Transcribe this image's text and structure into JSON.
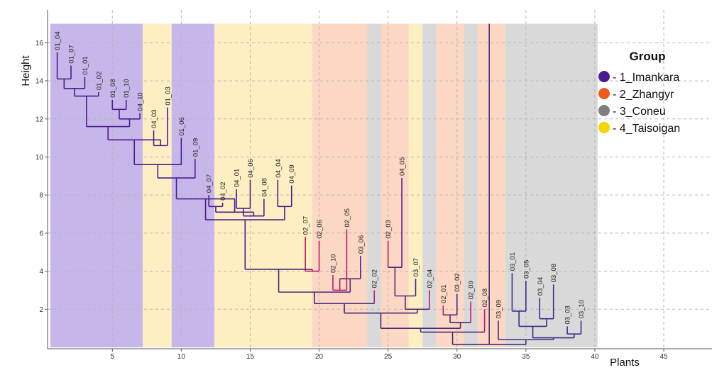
{
  "chart_data": {
    "type": "dendrogram",
    "xlabel": "Plants",
    "ylabel": "Height",
    "xlim": [
      0.3,
      48.5
    ],
    "ylim": [
      0,
      17
    ],
    "x_ticks": [
      5,
      10,
      15,
      20,
      25,
      30,
      35,
      40,
      45
    ],
    "y_ticks": [
      2,
      4,
      6,
      8,
      10,
      12,
      14,
      16
    ],
    "grid": true,
    "legend": {
      "title": "Group",
      "position": "right",
      "entries": [
        {
          "label": "- 1_Imankara",
          "color": "#4b1b8f"
        },
        {
          "label": "- 2_Zhangyr",
          "color": "#f05a1e"
        },
        {
          "label": "- 3_Coneu",
          "color": "#7f7f7f"
        },
        {
          "label": "- 4_Taisoigan",
          "color": "#f5d400"
        }
      ]
    },
    "background_bands": [
      {
        "from": 0.5,
        "to": 7.2,
        "group": "1_Imankara",
        "color": "#c7b6ea"
      },
      {
        "from": 7.2,
        "to": 9.3,
        "group": "4_Taisoigan",
        "color": "#fdefc2"
      },
      {
        "from": 9.3,
        "to": 12.4,
        "group": "1_Imankara",
        "color": "#c7b6ea"
      },
      {
        "from": 12.4,
        "to": 19.5,
        "group": "4_Taisoigan",
        "color": "#fdefc2"
      },
      {
        "from": 19.5,
        "to": 23.5,
        "group": "2_Zhangyr",
        "color": "#fcd7c3"
      },
      {
        "from": 23.5,
        "to": 24.5,
        "group": "3_Coneu",
        "color": "#d9d9d9"
      },
      {
        "from": 24.5,
        "to": 26.5,
        "group": "2_Zhangyr",
        "color": "#fcd7c3"
      },
      {
        "from": 26.5,
        "to": 27.5,
        "group": "4_Taisoigan",
        "color": "#fdefc2"
      },
      {
        "from": 27.5,
        "to": 28.5,
        "group": "3_Coneu",
        "color": "#d9d9d9"
      },
      {
        "from": 28.5,
        "to": 30.5,
        "group": "2_Zhangyr",
        "color": "#fcd7c3"
      },
      {
        "from": 30.5,
        "to": 31.5,
        "group": "3_Coneu",
        "color": "#d9d9d9"
      },
      {
        "from": 31.5,
        "to": 33.5,
        "group": "2_Zhangyr",
        "color": "#fcd7c3"
      },
      {
        "from": 33.5,
        "to": 40.2,
        "group": "3_Coneu",
        "color": "#d9d9d9"
      }
    ],
    "leaves": [
      {
        "label": "01_04",
        "x": 1,
        "y": 15.5
      },
      {
        "label": "01_07",
        "x": 2,
        "y": 14.8
      },
      {
        "label": "01_01",
        "x": 3,
        "y": 14.2
      },
      {
        "label": "01_02",
        "x": 4,
        "y": 13.4
      },
      {
        "label": "01_08",
        "x": 5,
        "y": 13.0
      },
      {
        "label": "01_10",
        "x": 6,
        "y": 13.0
      },
      {
        "label": "04_10",
        "x": 7,
        "y": 12.3
      },
      {
        "label": "04_03",
        "x": 8,
        "y": 11.4
      },
      {
        "label": "01_03",
        "x": 9,
        "y": 12.6
      },
      {
        "label": "01_06",
        "x": 10,
        "y": 11.0
      },
      {
        "label": "01_09",
        "x": 11,
        "y": 9.9
      },
      {
        "label": "04_07",
        "x": 12,
        "y": 8.0
      },
      {
        "label": "04_02",
        "x": 13,
        "y": 7.6
      },
      {
        "label": "04_01",
        "x": 14,
        "y": 8.3
      },
      {
        "label": "04_06",
        "x": 15,
        "y": 8.8
      },
      {
        "label": "04_08",
        "x": 16,
        "y": 7.8
      },
      {
        "label": "04_04",
        "x": 17,
        "y": 8.8
      },
      {
        "label": "04_09",
        "x": 18,
        "y": 8.5
      },
      {
        "label": "02_07",
        "x": 19,
        "y": 5.8
      },
      {
        "label": "02_06",
        "x": 20,
        "y": 5.6
      },
      {
        "label": "02_10",
        "x": 21,
        "y": 3.8
      },
      {
        "label": "02_05",
        "x": 22,
        "y": 6.2
      },
      {
        "label": "03_06",
        "x": 23,
        "y": 4.8
      },
      {
        "label": "02_02",
        "x": 24,
        "y": 3.0
      },
      {
        "label": "02_03",
        "x": 25,
        "y": 5.6
      },
      {
        "label": "04_05",
        "x": 26,
        "y": 8.9
      },
      {
        "label": "03_07",
        "x": 27,
        "y": 3.6
      },
      {
        "label": "02_04",
        "x": 28,
        "y": 3.0
      },
      {
        "label": "02_01",
        "x": 29,
        "y": 2.2
      },
      {
        "label": "03_02",
        "x": 30,
        "y": 2.8
      },
      {
        "label": "02_09",
        "x": 31,
        "y": 2.4
      },
      {
        "label": "02_08",
        "x": 32,
        "y": 2.0
      },
      {
        "label": "03_09",
        "x": 33,
        "y": 1.4
      },
      {
        "label": "03_01",
        "x": 34,
        "y": 3.9
      },
      {
        "label": "03_05",
        "x": 35,
        "y": 3.5
      },
      {
        "label": "03_04",
        "x": 36,
        "y": 2.6
      },
      {
        "label": "03_08",
        "x": 37,
        "y": 3.3
      },
      {
        "label": "03_03",
        "x": 38,
        "y": 1.1
      },
      {
        "label": "03_10",
        "x": 39,
        "y": 1.4
      }
    ],
    "merges": [
      {
        "id": "m1",
        "left": "01_04",
        "right": "01_07",
        "height": 14.1
      },
      {
        "id": "m2",
        "left": "m1",
        "right": "01_01",
        "height": 13.6
      },
      {
        "id": "m3",
        "left": "01_08",
        "right": "01_10",
        "height": 12.5
      },
      {
        "id": "m4",
        "left": "m2",
        "right": "01_02",
        "height": 13.2
      },
      {
        "id": "m5",
        "left": "m3",
        "right": "04_10",
        "height": 12.0
      },
      {
        "id": "m6",
        "left": "m4",
        "right": "m5",
        "height": 11.6
      },
      {
        "id": "m7",
        "left": "04_03",
        "right": "01_03",
        "height": 10.6
      },
      {
        "id": "m8",
        "left": "m6",
        "right": "m7",
        "height": 10.9
      },
      {
        "id": "m9",
        "left": "m8",
        "right": "01_06",
        "height": 9.6
      },
      {
        "id": "m10",
        "left": "m9",
        "right": "01_09",
        "height": 8.9
      },
      {
        "id": "m11",
        "left": "04_07",
        "right": "04_02",
        "height": 7.4
      },
      {
        "id": "m12",
        "left": "04_01",
        "right": "04_06",
        "height": 7.3
      },
      {
        "id": "m13",
        "left": "04_04",
        "right": "04_09",
        "height": 7.4
      },
      {
        "id": "m14",
        "left": "m12",
        "right": "04_08",
        "height": 6.9
      },
      {
        "id": "m15",
        "left": "m11",
        "right": "m14",
        "height": 7.1
      },
      {
        "id": "m16",
        "left": "m10",
        "right": "m15",
        "height": 7.8
      },
      {
        "id": "m17",
        "left": "m16",
        "right": "m13",
        "height": 6.7
      },
      {
        "id": "m18",
        "left": "02_07",
        "right": "02_06",
        "height": 4.0
      },
      {
        "id": "m19",
        "left": "m17",
        "right": "m18",
        "height": 4.1
      },
      {
        "id": "m20",
        "left": "02_10",
        "right": "02_05",
        "height": 3.0
      },
      {
        "id": "m21",
        "left": "m20",
        "right": "03_06",
        "height": 3.6
      },
      {
        "id": "m22",
        "left": "m19",
        "right": "m21",
        "height": 2.9
      },
      {
        "id": "m23",
        "left": "m22",
        "right": "02_02",
        "height": 2.3
      },
      {
        "id": "m24",
        "left": "02_03",
        "right": "04_05",
        "height": 4.2
      },
      {
        "id": "m25",
        "left": "m24",
        "right": "03_07",
        "height": 2.7
      },
      {
        "id": "m26",
        "left": "m25",
        "right": "02_04",
        "height": 2.0
      },
      {
        "id": "m27",
        "left": "m23",
        "right": "m26",
        "height": 1.8
      },
      {
        "id": "m28",
        "left": "02_01",
        "right": "03_02",
        "height": 1.7
      },
      {
        "id": "m29",
        "left": "m28",
        "right": "02_09",
        "height": 1.3
      },
      {
        "id": "m30",
        "left": "m27",
        "right": "m29",
        "height": 1.0
      },
      {
        "id": "m31",
        "left": "m30",
        "right": "02_08",
        "height": 0.8
      },
      {
        "id": "m32",
        "left": "03_01",
        "right": "03_05",
        "height": 1.9
      },
      {
        "id": "m33",
        "left": "03_04",
        "right": "03_08",
        "height": 1.5
      },
      {
        "id": "m34",
        "left": "m32",
        "right": "m33",
        "height": 1.1
      },
      {
        "id": "m35",
        "left": "03_03",
        "right": "03_10",
        "height": 0.7
      },
      {
        "id": "m36",
        "left": "m34",
        "right": "m35",
        "height": 0.5
      },
      {
        "id": "m37",
        "left": "03_09",
        "right": "m36",
        "height": 0.4
      },
      {
        "id": "m38",
        "left": "m31",
        "right": "m37",
        "height": 0.15
      }
    ],
    "root_top": 17.0
  }
}
